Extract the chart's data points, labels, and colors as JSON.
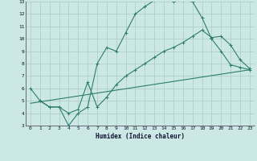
{
  "xlabel": "Humidex (Indice chaleur)",
  "bg_color": "#cce8e4",
  "grid_color": "#b0ceca",
  "line_color": "#2e7d6e",
  "xlim": [
    -0.5,
    23.5
  ],
  "ylim": [
    3,
    13
  ],
  "xticks": [
    0,
    1,
    2,
    3,
    4,
    5,
    6,
    7,
    8,
    9,
    10,
    11,
    12,
    13,
    14,
    15,
    16,
    17,
    18,
    19,
    20,
    21,
    22,
    23
  ],
  "yticks": [
    3,
    4,
    5,
    6,
    7,
    8,
    9,
    10,
    11,
    12,
    13
  ],
  "line1_x": [
    0,
    1,
    2,
    3,
    4,
    5,
    6,
    7,
    8,
    9,
    10,
    11,
    12,
    13,
    14,
    15,
    16,
    17,
    18,
    19,
    20,
    21,
    22,
    23
  ],
  "line1_y": [
    6.0,
    5.0,
    4.5,
    4.5,
    3.0,
    4.0,
    4.5,
    8.0,
    9.3,
    9.0,
    10.5,
    12.0,
    12.6,
    13.1,
    13.3,
    13.0,
    13.1,
    13.0,
    11.7,
    10.0,
    9.0,
    7.9,
    7.7,
    7.5
  ],
  "line2_x": [
    1,
    2,
    3,
    4,
    5,
    6,
    7,
    8,
    9,
    10,
    11,
    12,
    13,
    14,
    15,
    16,
    17,
    18,
    19,
    20,
    21,
    22,
    23
  ],
  "line2_y": [
    5.0,
    4.5,
    4.5,
    4.0,
    4.3,
    6.5,
    4.5,
    5.3,
    6.3,
    7.0,
    7.5,
    8.0,
    8.5,
    9.0,
    9.3,
    9.7,
    10.2,
    10.7,
    10.1,
    10.2,
    9.5,
    8.3,
    7.6
  ],
  "line3_x": [
    0,
    23
  ],
  "line3_y": [
    4.8,
    7.5
  ]
}
